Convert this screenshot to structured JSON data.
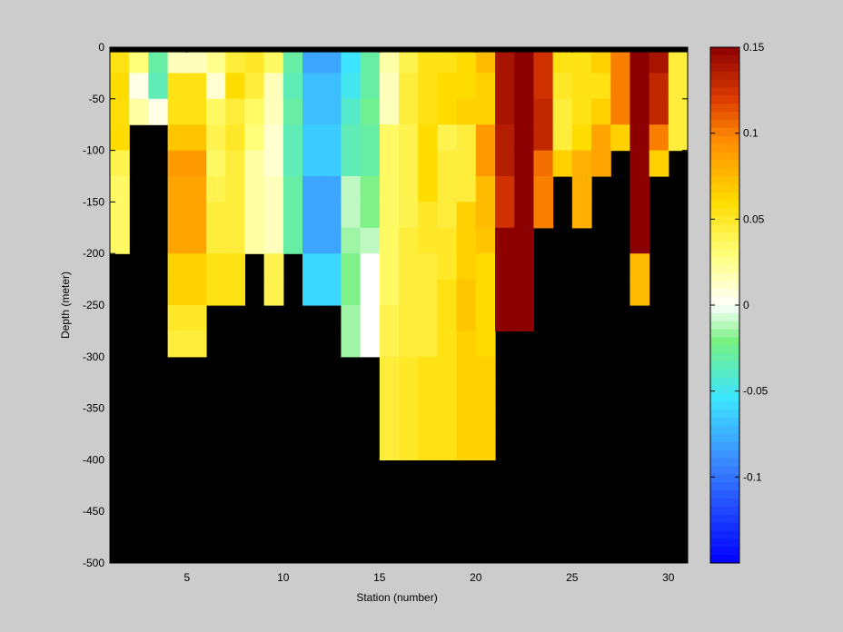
{
  "chart_data": {
    "type": "heatmap",
    "title": "",
    "xlabel": "Station (number)",
    "ylabel": "Depth (meter)",
    "xlim": [
      1,
      31
    ],
    "ylim": [
      -500,
      0
    ],
    "xticks": [
      5,
      10,
      15,
      20,
      25,
      30
    ],
    "yticks": [
      0,
      -50,
      -100,
      -150,
      -200,
      -250,
      -300,
      -350,
      -400,
      -450,
      -500
    ],
    "colorbar": {
      "range": [
        -0.15,
        0.15
      ],
      "ticks": [
        0.15,
        0.1,
        0.05,
        0,
        -0.05,
        -0.1
      ],
      "tick_labels": [
        "0.15",
        "0.1",
        "0.05",
        "0",
        "-0.05",
        "-0.1"
      ]
    },
    "mask_color": "#000000",
    "depth_levels": [
      -5,
      -25,
      -50,
      -75,
      -100,
      -125,
      -150,
      -175,
      -200,
      -225,
      -250,
      -275,
      -300,
      -325,
      -350,
      -375,
      -400
    ],
    "station_profiles": [
      {
        "station": 1,
        "values": [
          0.06,
          0.055,
          0.06,
          0.058,
          0.06,
          0.04,
          0.035,
          0.035,
          0.035
        ]
      },
      {
        "station": 2,
        "values": [
          0.05,
          0.03,
          0.005,
          0.02
        ]
      },
      {
        "station": 3,
        "values": [
          0.01,
          -0.03,
          -0.035,
          0.005
        ]
      },
      {
        "station": 4,
        "values": [
          0.045,
          0.015,
          0.055,
          0.055,
          0.07,
          0.09,
          0.085,
          0.085,
          0.085,
          0.065,
          0.065,
          0.05,
          0.045
        ]
      },
      {
        "station": 5,
        "values": [
          0.045,
          0.015,
          0.055,
          0.055,
          0.07,
          0.09,
          0.085,
          0.085,
          0.085,
          0.065,
          0.065,
          0.05,
          0.045
        ]
      },
      {
        "station": 6,
        "values": [
          0.05,
          0.025,
          0.01,
          0.035,
          0.04,
          0.035,
          0.04,
          0.045,
          0.045,
          0.055,
          0.055
        ]
      },
      {
        "station": 7,
        "values": [
          0.08,
          0.045,
          0.06,
          0.045,
          0.05,
          0.045,
          0.045,
          0.045,
          0.045,
          0.055,
          0.055
        ]
      },
      {
        "station": 8,
        "values": [
          0.075,
          0.05,
          0.045,
          0.035,
          0.03,
          0.02,
          0.02,
          0.02,
          0.02
        ]
      },
      {
        "station": 9,
        "values": [
          0.05,
          0.035,
          0.015,
          0.015,
          0.01,
          0.01,
          0.015,
          0.015,
          0.015,
          0.04,
          0.04
        ]
      },
      {
        "station": 10,
        "values": [
          -0.01,
          -0.03,
          -0.035,
          -0.03,
          -0.035,
          -0.035,
          -0.03,
          -0.03,
          -0.03
        ]
      },
      {
        "station": 11,
        "values": [
          -0.065,
          -0.08,
          -0.07,
          -0.07,
          -0.065,
          -0.065,
          -0.08,
          -0.08,
          -0.08,
          -0.06,
          -0.06
        ]
      },
      {
        "station": 12,
        "values": [
          -0.065,
          -0.08,
          -0.07,
          -0.07,
          -0.065,
          -0.065,
          -0.08,
          -0.08,
          -0.08,
          -0.06,
          -0.06
        ]
      },
      {
        "station": 13,
        "values": [
          -0.04,
          -0.055,
          -0.05,
          -0.04,
          -0.035,
          -0.035,
          -0.01,
          -0.01,
          -0.015,
          -0.02,
          -0.02,
          -0.015,
          -0.015
        ]
      },
      {
        "station": 14,
        "values": [
          0.005,
          -0.03,
          -0.03,
          -0.025,
          -0.03,
          -0.03,
          -0.02,
          -0.02,
          -0.01,
          0.0,
          0.0,
          0.0,
          0.0
        ]
      },
      {
        "station": 15,
        "values": [
          0.04,
          0.02,
          0.015,
          0.015,
          0.035,
          0.035,
          0.035,
          0.035,
          0.035,
          0.035,
          0.035,
          0.04,
          0.04,
          0.045,
          0.045,
          0.045,
          0.045
        ]
      },
      {
        "station": 16,
        "values": [
          0.06,
          0.04,
          0.045,
          0.045,
          0.04,
          0.04,
          0.04,
          0.04,
          0.045,
          0.045,
          0.045,
          0.045,
          0.045,
          0.05,
          0.05,
          0.05,
          0.05
        ]
      },
      {
        "station": 17,
        "values": [
          0.065,
          0.055,
          0.055,
          0.055,
          0.06,
          0.06,
          0.06,
          0.05,
          0.05,
          0.045,
          0.045,
          0.045,
          0.045,
          0.055,
          0.055,
          0.055,
          0.055
        ]
      },
      {
        "station": 18,
        "values": [
          0.07,
          0.055,
          0.06,
          0.06,
          0.04,
          0.045,
          0.045,
          0.045,
          0.05,
          0.05,
          0.055,
          0.055,
          0.055,
          0.055,
          0.055,
          0.055,
          0.055
        ]
      },
      {
        "station": 19,
        "values": [
          0.075,
          0.06,
          0.06,
          0.065,
          0.045,
          0.045,
          0.045,
          0.065,
          0.065,
          0.065,
          0.07,
          0.07,
          0.065,
          0.065,
          0.065,
          0.065,
          0.065
        ]
      },
      {
        "station": 20,
        "values": [
          0.085,
          0.075,
          0.065,
          0.065,
          0.09,
          0.09,
          0.075,
          0.075,
          0.07,
          0.06,
          0.06,
          0.06,
          0.06,
          0.065,
          0.065,
          0.065,
          0.065
        ]
      },
      {
        "station": 21,
        "values": [
          0.15,
          0.14,
          0.14,
          0.14,
          0.135,
          0.135,
          0.125,
          0.125,
          0.15,
          0.15,
          0.15,
          0.15
        ]
      },
      {
        "station": 22,
        "values": [
          0.15,
          0.15,
          0.15,
          0.15,
          0.15,
          0.15,
          0.15,
          0.15,
          0.15,
          0.15,
          0.15,
          0.15
        ]
      },
      {
        "station": 23,
        "values": [
          0.13,
          0.125,
          0.125,
          0.13,
          0.13,
          0.105,
          0.1,
          0.1
        ]
      },
      {
        "station": 24,
        "values": [
          0.065,
          0.055,
          0.05,
          0.045,
          0.045,
          0.065
        ]
      },
      {
        "station": 25,
        "values": [
          0.07,
          0.055,
          0.055,
          0.055,
          0.06,
          0.08,
          0.08,
          0.08
        ]
      },
      {
        "station": 26,
        "values": [
          0.065,
          0.065,
          0.055,
          0.065,
          0.085,
          0.085
        ]
      },
      {
        "station": 27,
        "values": [
          0.11,
          0.1,
          0.1,
          0.1,
          0.065
        ]
      },
      {
        "station": 28,
        "values": [
          0.15,
          0.15,
          0.15,
          0.15,
          0.15,
          0.15,
          0.15,
          0.15,
          0.15,
          0.075,
          0.075
        ]
      },
      {
        "station": 29,
        "values": [
          0.15,
          0.14,
          0.13,
          0.13,
          0.1,
          0.065
        ]
      },
      {
        "station": 30,
        "values": [
          0.05,
          0.045,
          0.045,
          0.045,
          0.045
        ]
      }
    ]
  }
}
